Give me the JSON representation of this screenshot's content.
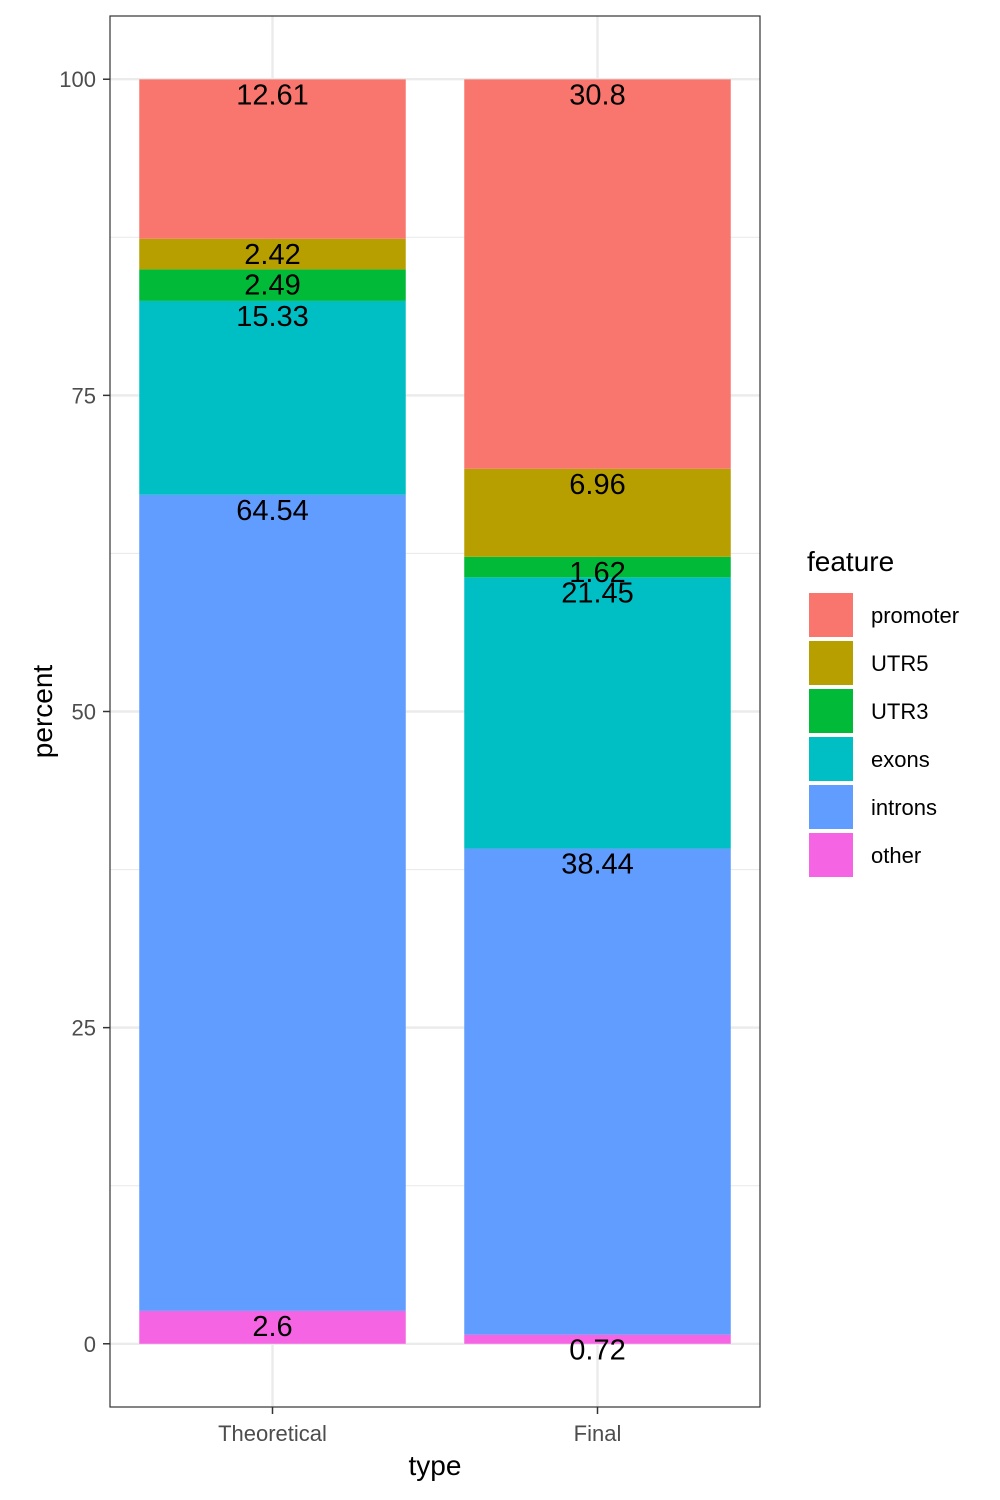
{
  "chart_data": {
    "type": "bar",
    "stacked": true,
    "categories": [
      "Theoretical",
      "Final"
    ],
    "xlabel": "type",
    "ylabel": "percent",
    "ylim": [
      -5,
      105
    ],
    "yticks": [
      0,
      25,
      50,
      75,
      100
    ],
    "grid": true,
    "legend": {
      "title": "feature",
      "position": "right"
    },
    "series": [
      {
        "name": "promoter",
        "color": "#F8766D",
        "values": [
          12.61,
          30.8
        ]
      },
      {
        "name": "UTR5",
        "color": "#B79F00",
        "values": [
          2.42,
          6.96
        ]
      },
      {
        "name": "UTR3",
        "color": "#00BA38",
        "values": [
          2.49,
          1.62
        ]
      },
      {
        "name": "exons",
        "color": "#00BFC4",
        "values": [
          15.33,
          21.45
        ]
      },
      {
        "name": "introns",
        "color": "#619CFF",
        "values": [
          64.54,
          38.44
        ]
      },
      {
        "name": "other",
        "color": "#F564E3",
        "values": [
          2.6,
          0.72
        ]
      }
    ],
    "data_labels": [
      [
        "12.61",
        "30.8"
      ],
      [
        "2.42",
        "6.96"
      ],
      [
        "2.49",
        "1.62"
      ],
      [
        "15.33",
        "21.45"
      ],
      [
        "64.54",
        "38.44"
      ],
      [
        "2.6",
        "0.72"
      ]
    ]
  }
}
